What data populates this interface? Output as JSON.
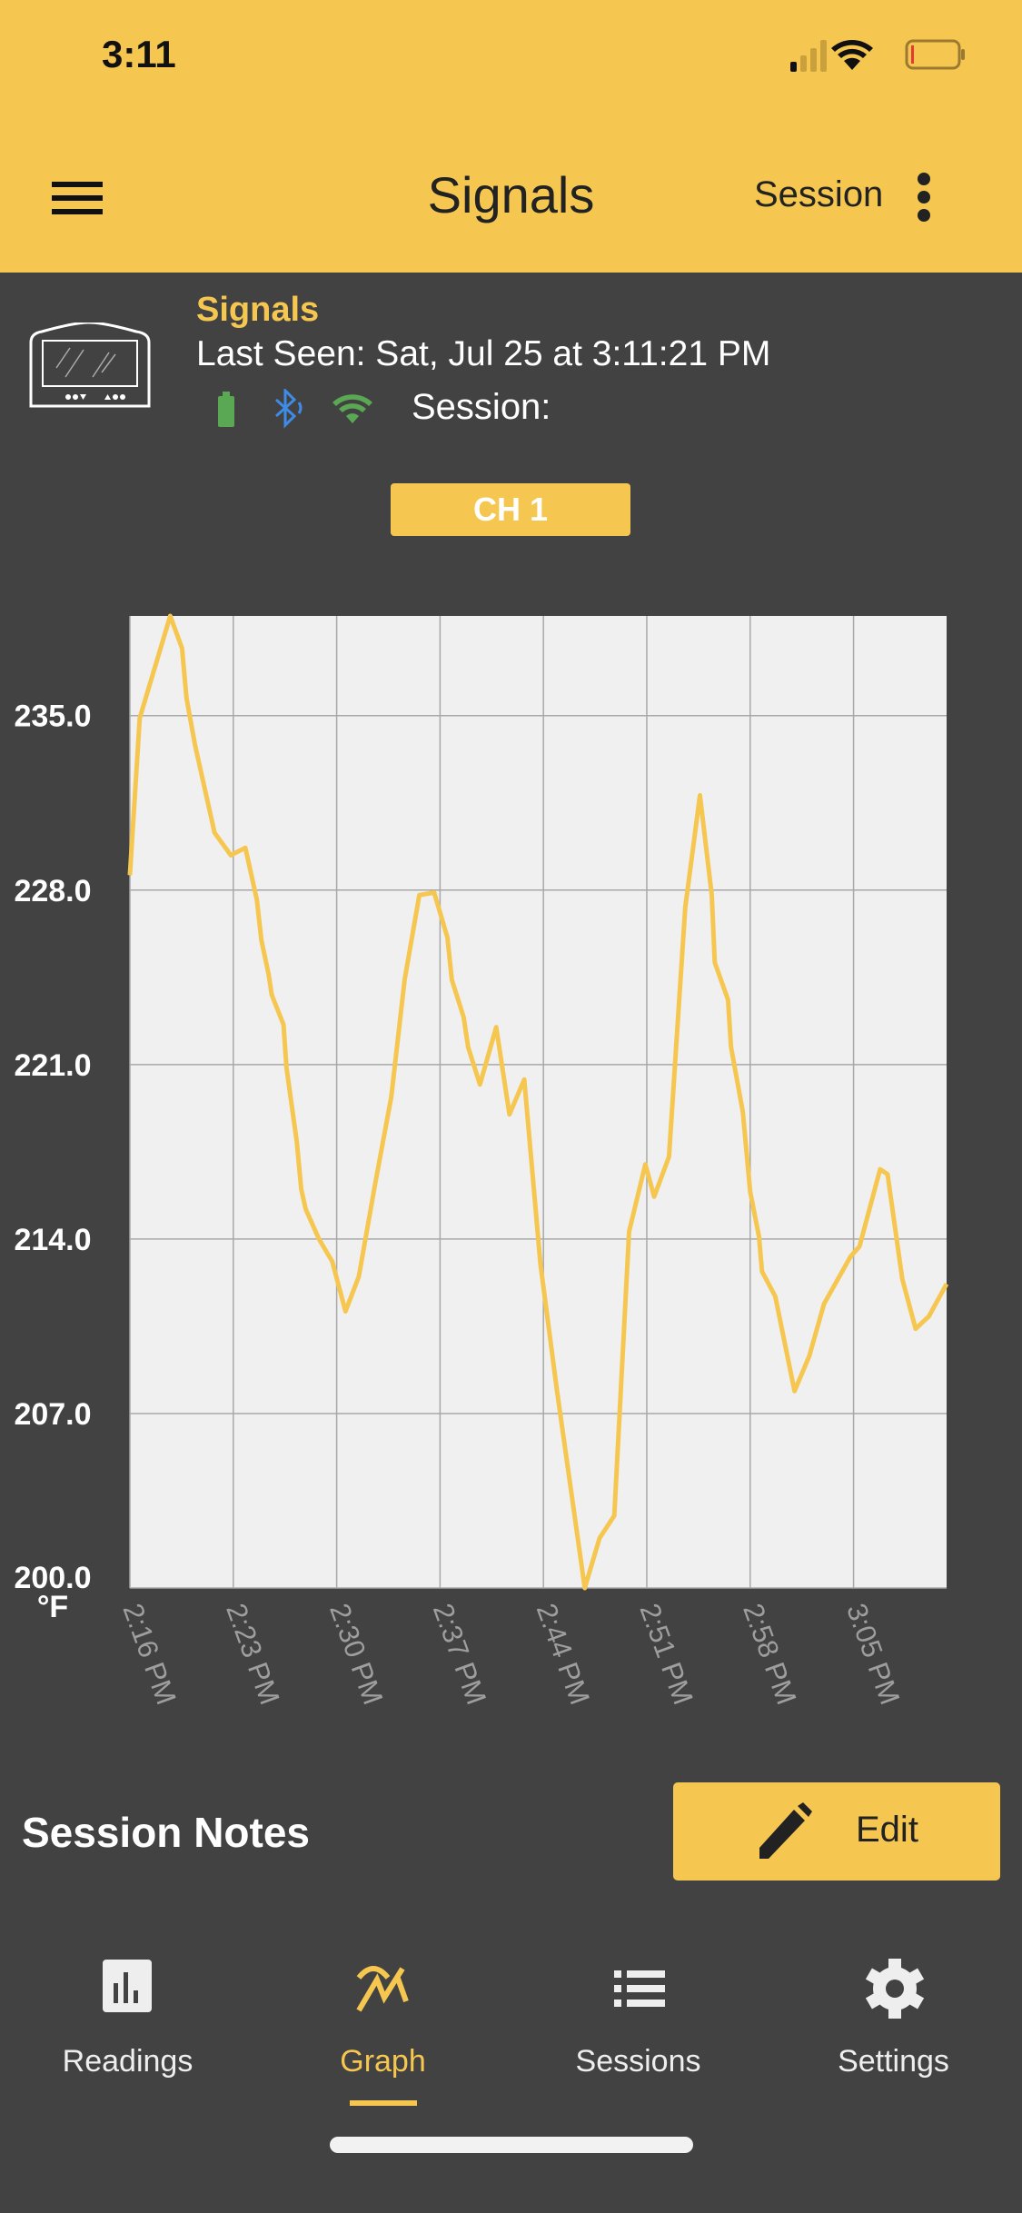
{
  "status_bar": {
    "time": "3:11",
    "icons": [
      "cellular-signal-icon",
      "wifi-icon",
      "battery-low-icon"
    ]
  },
  "header": {
    "title": "Signals",
    "session_label": "Session",
    "menu_icon": "hamburger-menu-icon",
    "more_icon": "more-vertical-icon"
  },
  "device": {
    "name": "Signals",
    "last_seen": "Last Seen: Sat, Jul 25 at 3:11:21 PM",
    "session_label": "Session:",
    "icons": [
      "device-icon",
      "battery-icon",
      "bluetooth-icon",
      "wifi-icon"
    ]
  },
  "channel_button": "CH 1",
  "colors": {
    "accent": "#F6C750",
    "background": "#424242",
    "plot_bg": "#F0F0F0",
    "battery": "#5BA854",
    "bluetooth": "#3F8BE8",
    "wifi": "#5BA854"
  },
  "chart_data": {
    "type": "line",
    "ylabel": "°F",
    "ylim": [
      200,
      239
    ],
    "yticks": [
      "235.0",
      "228.0",
      "221.0",
      "214.0",
      "207.0",
      "200.0"
    ],
    "ytick_values": [
      235,
      228,
      221,
      214,
      207,
      200
    ],
    "xlim": [
      "14:16:00",
      "15:11:18"
    ],
    "xticks": [
      "2:16 PM",
      "2:23 PM",
      "2:30 PM",
      "2:37 PM",
      "2:44 PM",
      "2:51 PM",
      "2:58 PM",
      "3:05 PM"
    ],
    "xtick_values": [
      "14:16:00",
      "14:23:00",
      "14:30:00",
      "14:37:00",
      "14:44:00",
      "14:51:00",
      "14:58:00",
      "15:05:00"
    ],
    "grid": true,
    "series": [
      {
        "color": "#F6C750",
        "x": [
          "14:16:00",
          "14:16:40",
          "14:18:44",
          "14:19:32",
          "14:19:50",
          "14:20:25",
          "14:21:44",
          "14:22:50",
          "14:23:49",
          "14:24:36",
          "14:24:54",
          "14:25:24",
          "14:25:36",
          "14:26:24",
          "14:26:36",
          "14:27:18",
          "14:27:36",
          "14:27:54",
          "14:28:48",
          "14:29:42",
          "14:30:36",
          "14:31:30",
          "14:32:36",
          "14:33:42",
          "14:34:36",
          "14:35:36",
          "14:36:36",
          "14:37:30",
          "14:37:48",
          "14:38:36",
          "14:38:54",
          "14:39:42",
          "14:40:48",
          "14:41:42",
          "14:42:42",
          "14:43:48",
          "14:44:54",
          "14:46:48",
          "14:47:48",
          "14:48:48",
          "14:49:48",
          "14:50:54",
          "14:51:30",
          "14:52:30",
          "14:53:36",
          "14:54:36",
          "14:55:24",
          "14:55:36",
          "14:56:30",
          "14:56:42",
          "14:57:30",
          "14:58:00",
          "14:58:36",
          "14:58:48",
          "14:59:42",
          "15:01:00",
          "15:02:00",
          "15:03:00",
          "15:04:48",
          "15:05:24",
          "15:06:48",
          "15:07:18",
          "15:08:18",
          "15:09:12",
          "15:10:06",
          "15:11:18"
        ],
        "y": [
          228.6,
          234.9,
          239.0,
          237.7,
          235.7,
          233.8,
          230.3,
          229.4,
          229.7,
          227.6,
          226.0,
          224.6,
          223.8,
          222.6,
          220.9,
          217.9,
          216.0,
          215.2,
          214.0,
          213.1,
          211.1,
          212.5,
          216.2,
          219.7,
          224.4,
          227.8,
          227.9,
          226.1,
          224.4,
          222.9,
          221.7,
          220.2,
          222.5,
          219.0,
          220.4,
          213.0,
          208.0,
          200.0,
          202.0,
          202.9,
          214.3,
          217.0,
          215.7,
          217.3,
          227.3,
          231.8,
          227.8,
          225.1,
          223.6,
          221.7,
          219.1,
          215.9,
          214.1,
          212.7,
          211.7,
          207.9,
          209.3,
          211.4,
          213.3,
          213.7,
          216.8,
          216.6,
          212.4,
          210.4,
          210.9,
          212.2
        ]
      }
    ]
  },
  "notes": {
    "title": "Session Notes",
    "edit_label": "Edit",
    "edit_icon": "pencil-icon"
  },
  "nav": [
    {
      "label": "Readings",
      "icon": "bar-chart-icon"
    },
    {
      "label": "Graph",
      "icon": "graph-icon",
      "active": true
    },
    {
      "label": "Sessions",
      "icon": "list-icon"
    },
    {
      "label": "Settings",
      "icon": "gear-icon"
    }
  ]
}
